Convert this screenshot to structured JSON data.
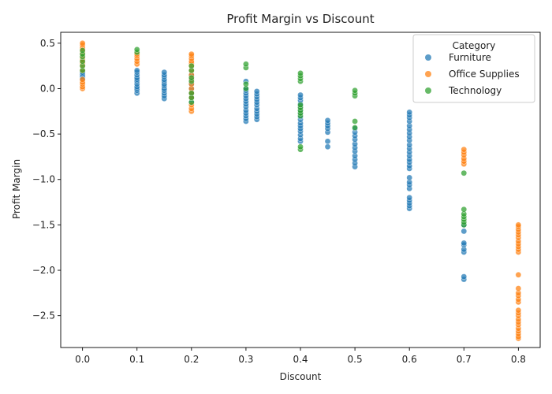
{
  "chart_data": {
    "type": "scatter",
    "title": "Profit Margin vs Discount",
    "xlabel": "Discount",
    "ylabel": "Profit Margin",
    "xlim": [
      -0.04,
      0.84
    ],
    "ylim": [
      -2.85,
      0.62
    ],
    "xticks": [
      0.0,
      0.1,
      0.2,
      0.3,
      0.4,
      0.5,
      0.6,
      0.7,
      0.8
    ],
    "yticks": [
      0.5,
      0.0,
      -0.5,
      -1.0,
      -1.5,
      -2.0,
      -2.5
    ],
    "xtick_labels": [
      "0.0",
      "0.1",
      "0.2",
      "0.3",
      "0.4",
      "0.5",
      "0.6",
      "0.7",
      "0.8"
    ],
    "ytick_labels": [
      "0.5",
      "0.0",
      "−0.5",
      "−1.0",
      "−1.5",
      "−2.0",
      "−2.5"
    ],
    "grid": false,
    "legend": {
      "title": "Category",
      "placement": "top-right"
    },
    "series": [
      {
        "name": "Furniture",
        "color": "#1f77b4",
        "points": [
          [
            0.0,
            0.12
          ],
          [
            0.0,
            0.14
          ],
          [
            0.0,
            0.16
          ],
          [
            0.0,
            0.18
          ],
          [
            0.0,
            0.1
          ],
          [
            0.1,
            -0.05
          ],
          [
            0.1,
            -0.02
          ],
          [
            0.1,
            0.0
          ],
          [
            0.1,
            0.02
          ],
          [
            0.1,
            0.05
          ],
          [
            0.1,
            0.08
          ],
          [
            0.1,
            0.1
          ],
          [
            0.1,
            0.12
          ],
          [
            0.1,
            0.15
          ],
          [
            0.1,
            0.18
          ],
          [
            0.1,
            0.2
          ],
          [
            0.15,
            -0.11
          ],
          [
            0.15,
            -0.08
          ],
          [
            0.15,
            -0.05
          ],
          [
            0.15,
            -0.02
          ],
          [
            0.15,
            0.0
          ],
          [
            0.15,
            0.03
          ],
          [
            0.15,
            0.05
          ],
          [
            0.15,
            0.08
          ],
          [
            0.15,
            0.1
          ],
          [
            0.15,
            0.13
          ],
          [
            0.15,
            0.15
          ],
          [
            0.15,
            0.18
          ],
          [
            0.2,
            -0.15
          ],
          [
            0.2,
            -0.1
          ],
          [
            0.2,
            -0.05
          ],
          [
            0.2,
            0.0
          ],
          [
            0.2,
            0.05
          ],
          [
            0.2,
            0.1
          ],
          [
            0.2,
            0.15
          ],
          [
            0.3,
            -0.36
          ],
          [
            0.3,
            -0.33
          ],
          [
            0.3,
            -0.3
          ],
          [
            0.3,
            -0.27
          ],
          [
            0.3,
            -0.24
          ],
          [
            0.3,
            -0.2
          ],
          [
            0.3,
            -0.17
          ],
          [
            0.3,
            -0.14
          ],
          [
            0.3,
            -0.11
          ],
          [
            0.3,
            -0.08
          ],
          [
            0.3,
            -0.05
          ],
          [
            0.3,
            -0.02
          ],
          [
            0.3,
            0.0
          ],
          [
            0.3,
            0.08
          ],
          [
            0.32,
            -0.34
          ],
          [
            0.32,
            -0.31
          ],
          [
            0.32,
            -0.28
          ],
          [
            0.32,
            -0.25
          ],
          [
            0.32,
            -0.22
          ],
          [
            0.32,
            -0.18
          ],
          [
            0.32,
            -0.15
          ],
          [
            0.32,
            -0.12
          ],
          [
            0.32,
            -0.09
          ],
          [
            0.32,
            -0.06
          ],
          [
            0.32,
            -0.03
          ],
          [
            0.4,
            -0.58
          ],
          [
            0.4,
            -0.55
          ],
          [
            0.4,
            -0.51
          ],
          [
            0.4,
            -0.47
          ],
          [
            0.4,
            -0.44
          ],
          [
            0.4,
            -0.41
          ],
          [
            0.4,
            -0.38
          ],
          [
            0.4,
            -0.34
          ],
          [
            0.4,
            -0.31
          ],
          [
            0.4,
            -0.27
          ],
          [
            0.4,
            -0.24
          ],
          [
            0.4,
            -0.2
          ],
          [
            0.4,
            -0.17
          ],
          [
            0.4,
            -0.13
          ],
          [
            0.4,
            -0.1
          ],
          [
            0.4,
            -0.07
          ],
          [
            0.45,
            -0.64
          ],
          [
            0.45,
            -0.58
          ],
          [
            0.45,
            -0.48
          ],
          [
            0.45,
            -0.44
          ],
          [
            0.45,
            -0.41
          ],
          [
            0.45,
            -0.38
          ],
          [
            0.45,
            -0.35
          ],
          [
            0.5,
            -0.86
          ],
          [
            0.5,
            -0.82
          ],
          [
            0.5,
            -0.78
          ],
          [
            0.5,
            -0.74
          ],
          [
            0.5,
            -0.69
          ],
          [
            0.5,
            -0.65
          ],
          [
            0.5,
            -0.61
          ],
          [
            0.5,
            -0.56
          ],
          [
            0.5,
            -0.52
          ],
          [
            0.5,
            -0.48
          ],
          [
            0.5,
            -0.44
          ],
          [
            0.6,
            -1.32
          ],
          [
            0.6,
            -1.29
          ],
          [
            0.6,
            -1.26
          ],
          [
            0.6,
            -1.23
          ],
          [
            0.6,
            -1.2
          ],
          [
            0.6,
            -1.1
          ],
          [
            0.6,
            -1.06
          ],
          [
            0.6,
            -1.03
          ],
          [
            0.6,
            -0.98
          ],
          [
            0.6,
            -0.88
          ],
          [
            0.6,
            -0.85
          ],
          [
            0.6,
            -0.81
          ],
          [
            0.6,
            -0.78
          ],
          [
            0.6,
            -0.74
          ],
          [
            0.6,
            -0.7
          ],
          [
            0.6,
            -0.66
          ],
          [
            0.6,
            -0.62
          ],
          [
            0.6,
            -0.57
          ],
          [
            0.6,
            -0.53
          ],
          [
            0.6,
            -0.49
          ],
          [
            0.6,
            -0.45
          ],
          [
            0.6,
            -0.41
          ],
          [
            0.6,
            -0.36
          ],
          [
            0.6,
            -0.32
          ],
          [
            0.6,
            -0.29
          ],
          [
            0.6,
            -0.26
          ],
          [
            0.7,
            -2.1
          ],
          [
            0.7,
            -2.07
          ],
          [
            0.7,
            -1.8
          ],
          [
            0.7,
            -1.77
          ],
          [
            0.7,
            -1.72
          ],
          [
            0.7,
            -1.7
          ],
          [
            0.7,
            -1.57
          ],
          [
            0.7,
            -1.5
          ]
        ]
      },
      {
        "name": "Office Supplies",
        "color": "#ff7f0e",
        "points": [
          [
            0.0,
            0.0
          ],
          [
            0.0,
            0.02
          ],
          [
            0.0,
            0.05
          ],
          [
            0.0,
            0.07
          ],
          [
            0.0,
            0.1
          ],
          [
            0.0,
            0.2
          ],
          [
            0.0,
            0.25
          ],
          [
            0.0,
            0.28
          ],
          [
            0.0,
            0.3
          ],
          [
            0.0,
            0.32
          ],
          [
            0.0,
            0.36
          ],
          [
            0.0,
            0.4
          ],
          [
            0.0,
            0.43
          ],
          [
            0.0,
            0.45
          ],
          [
            0.0,
            0.48
          ],
          [
            0.0,
            0.5
          ],
          [
            0.1,
            0.27
          ],
          [
            0.1,
            0.3
          ],
          [
            0.1,
            0.33
          ],
          [
            0.1,
            0.36
          ],
          [
            0.1,
            0.38
          ],
          [
            0.2,
            -0.25
          ],
          [
            0.2,
            -0.22
          ],
          [
            0.2,
            -0.18
          ],
          [
            0.2,
            -0.1
          ],
          [
            0.2,
            -0.05
          ],
          [
            0.2,
            0.0
          ],
          [
            0.2,
            0.05
          ],
          [
            0.2,
            0.1
          ],
          [
            0.2,
            0.15
          ],
          [
            0.2,
            0.2
          ],
          [
            0.2,
            0.25
          ],
          [
            0.2,
            0.28
          ],
          [
            0.2,
            0.3
          ],
          [
            0.2,
            0.33
          ],
          [
            0.2,
            0.36
          ],
          [
            0.2,
            0.38
          ],
          [
            0.7,
            -0.83
          ],
          [
            0.7,
            -0.8
          ],
          [
            0.7,
            -0.77
          ],
          [
            0.7,
            -0.73
          ],
          [
            0.7,
            -0.7
          ],
          [
            0.7,
            -0.67
          ],
          [
            0.8,
            -2.75
          ],
          [
            0.8,
            -2.73
          ],
          [
            0.8,
            -2.7
          ],
          [
            0.8,
            -2.67
          ],
          [
            0.8,
            -2.64
          ],
          [
            0.8,
            -2.6
          ],
          [
            0.8,
            -2.57
          ],
          [
            0.8,
            -2.54
          ],
          [
            0.8,
            -2.5
          ],
          [
            0.8,
            -2.47
          ],
          [
            0.8,
            -2.44
          ],
          [
            0.8,
            -2.35
          ],
          [
            0.8,
            -2.32
          ],
          [
            0.8,
            -2.28
          ],
          [
            0.8,
            -2.25
          ],
          [
            0.8,
            -2.2
          ],
          [
            0.8,
            -2.05
          ],
          [
            0.8,
            -1.8
          ],
          [
            0.8,
            -1.77
          ],
          [
            0.8,
            -1.74
          ],
          [
            0.8,
            -1.71
          ],
          [
            0.8,
            -1.68
          ],
          [
            0.8,
            -1.64
          ],
          [
            0.8,
            -1.61
          ],
          [
            0.8,
            -1.58
          ],
          [
            0.8,
            -1.55
          ],
          [
            0.8,
            -1.52
          ],
          [
            0.8,
            -1.5
          ]
        ]
      },
      {
        "name": "Technology",
        "color": "#2ca02c",
        "points": [
          [
            0.0,
            0.2
          ],
          [
            0.0,
            0.25
          ],
          [
            0.0,
            0.3
          ],
          [
            0.0,
            0.35
          ],
          [
            0.0,
            0.38
          ],
          [
            0.0,
            0.42
          ],
          [
            0.1,
            0.4
          ],
          [
            0.1,
            0.43
          ],
          [
            0.2,
            -0.15
          ],
          [
            0.2,
            -0.1
          ],
          [
            0.2,
            -0.05
          ],
          [
            0.2,
            0.08
          ],
          [
            0.2,
            0.12
          ],
          [
            0.2,
            0.2
          ],
          [
            0.2,
            0.25
          ],
          [
            0.3,
            0.0
          ],
          [
            0.3,
            0.05
          ],
          [
            0.3,
            0.23
          ],
          [
            0.3,
            0.27
          ],
          [
            0.4,
            -0.67
          ],
          [
            0.4,
            -0.64
          ],
          [
            0.4,
            -0.3
          ],
          [
            0.4,
            -0.27
          ],
          [
            0.4,
            -0.24
          ],
          [
            0.4,
            -0.21
          ],
          [
            0.4,
            -0.18
          ],
          [
            0.4,
            0.08
          ],
          [
            0.4,
            0.11
          ],
          [
            0.4,
            0.14
          ],
          [
            0.4,
            0.17
          ],
          [
            0.5,
            -0.43
          ],
          [
            0.5,
            -0.36
          ],
          [
            0.5,
            -0.08
          ],
          [
            0.5,
            -0.05
          ],
          [
            0.5,
            -0.02
          ],
          [
            0.7,
            -1.5
          ],
          [
            0.7,
            -1.47
          ],
          [
            0.7,
            -1.44
          ],
          [
            0.7,
            -1.41
          ],
          [
            0.7,
            -1.38
          ],
          [
            0.7,
            -1.33
          ],
          [
            0.7,
            -0.93
          ]
        ]
      }
    ]
  }
}
